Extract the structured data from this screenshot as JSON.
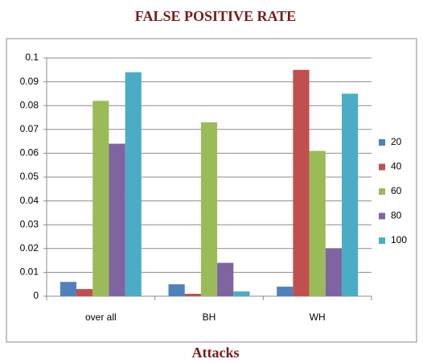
{
  "chart_data": {
    "type": "bar",
    "title": "FALSE POSITIVE RATE",
    "x_label": "Attacks",
    "categories": [
      "over all",
      "BH",
      "WH"
    ],
    "series": [
      {
        "name": "20",
        "color": "#4f81bd",
        "values": [
          0.006,
          0.005,
          0.004
        ]
      },
      {
        "name": "40",
        "color": "#c0504d",
        "values": [
          0.003,
          0.001,
          0.095
        ]
      },
      {
        "name": "60",
        "color": "#9bbb59",
        "values": [
          0.082,
          0.073,
          0.061
        ]
      },
      {
        "name": "80",
        "color": "#8064a2",
        "values": [
          0.064,
          0.014,
          0.02
        ]
      },
      {
        "name": "100",
        "color": "#4bacc6",
        "values": [
          0.094,
          0.002,
          0.085
        ]
      }
    ],
    "ylim": [
      0,
      0.1
    ],
    "yticks": [
      0,
      0.01,
      0.02,
      0.03,
      0.04,
      0.05,
      0.06,
      0.07,
      0.08,
      0.09,
      0.1
    ],
    "grid": true,
    "legend": "right"
  }
}
